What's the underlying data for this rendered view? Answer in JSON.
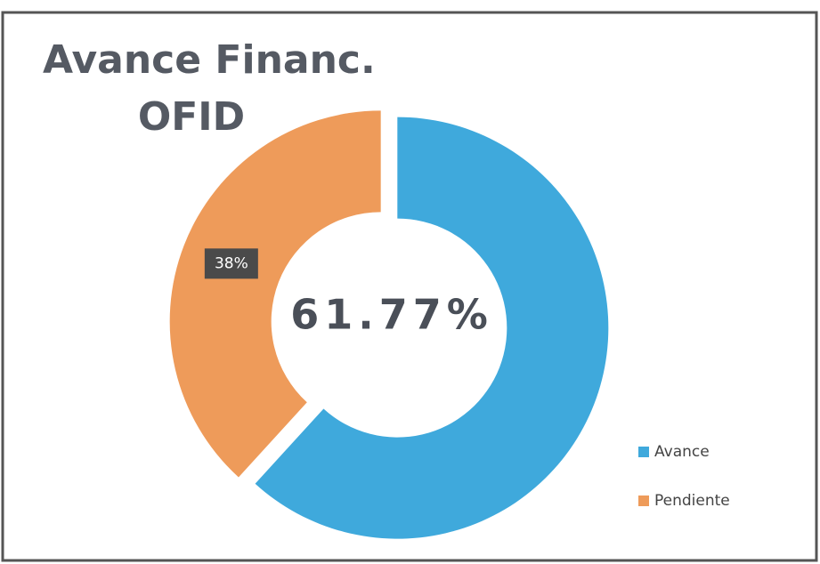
{
  "chart_data": {
    "type": "donut",
    "title": "Avance Financ.",
    "subtitle": "OFID",
    "categories": [
      "Avance",
      "Pendiente"
    ],
    "values": [
      61.77,
      38.23
    ],
    "value_labels": [
      "61.77%",
      "38%"
    ],
    "colors": [
      "#3fa9dc",
      "#ee9b5a"
    ],
    "legend": "right"
  }
}
